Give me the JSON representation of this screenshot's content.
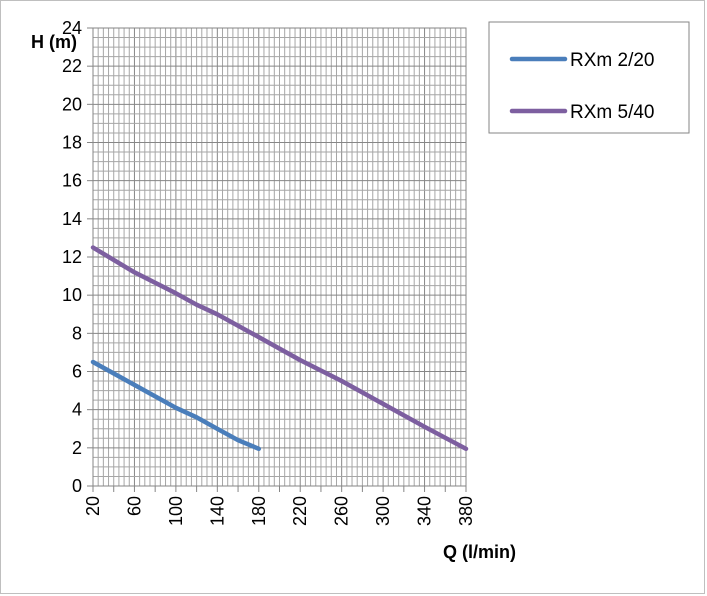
{
  "chart_data": {
    "type": "line",
    "title": "",
    "xlabel": "Q (l/min)",
    "ylabel": "H (m)",
    "xlim": [
      20,
      380
    ],
    "ylim": [
      0,
      24
    ],
    "x_ticks": [
      20,
      60,
      100,
      140,
      180,
      220,
      260,
      300,
      340,
      380
    ],
    "y_ticks": [
      0,
      2,
      4,
      6,
      8,
      10,
      12,
      14,
      16,
      18,
      20,
      22,
      24
    ],
    "x_minor_step": 5,
    "y_minor_step": 0.5,
    "grid": true,
    "legend_position": "top-right",
    "series": [
      {
        "name": "RXm 2/20",
        "color": "#4a7ebb",
        "x": [
          20,
          60,
          100,
          120,
          140,
          160,
          180
        ],
        "y": [
          6.5,
          5.3,
          4.1,
          3.6,
          3.0,
          2.4,
          1.95
        ]
      },
      {
        "name": "RXm 5/40",
        "color": "#7d5fa0",
        "x": [
          20,
          60,
          100,
          120,
          140,
          180,
          220,
          260,
          300,
          340,
          380
        ],
        "y": [
          12.5,
          11.2,
          10.1,
          9.5,
          9.0,
          7.8,
          6.6,
          5.5,
          4.3,
          3.1,
          1.95
        ]
      }
    ]
  }
}
